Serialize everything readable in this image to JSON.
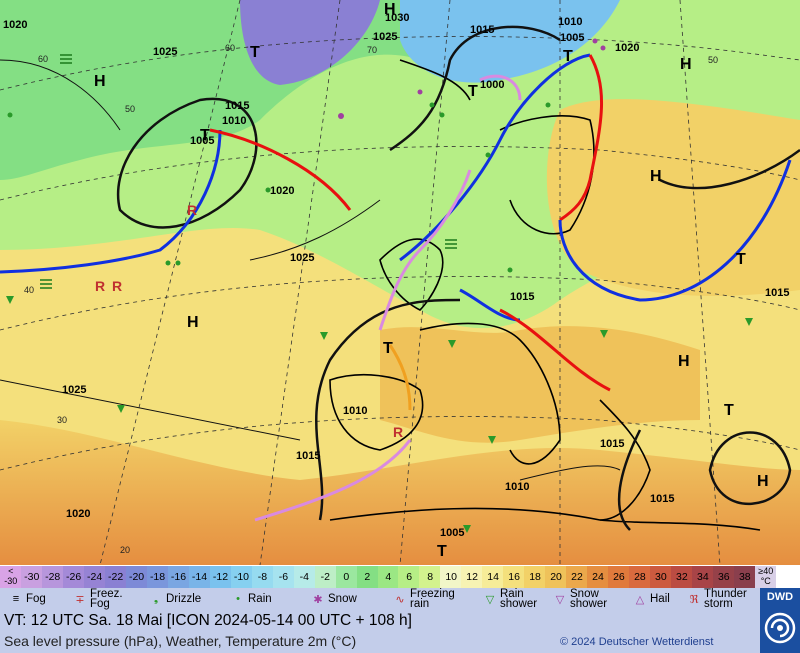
{
  "map": {
    "pressure_labels": [
      "1020",
      "1025",
      "1030",
      "1025",
      "1015",
      "1010",
      "1005",
      "1020",
      "1015",
      "1010",
      "1005",
      "1000",
      "1020",
      "1025",
      "1015",
      "1025",
      "1010",
      "1015",
      "1015",
      "1015",
      "1010",
      "1005",
      "1015",
      "1020"
    ],
    "high_marker": "H",
    "low_marker": "T",
    "lat_labels": [
      "60",
      "50",
      "40",
      "30",
      "20",
      "60",
      "50",
      "70"
    ]
  },
  "scale": {
    "values": [
      "<\n-30",
      "-30",
      "-28",
      "-26",
      "-24",
      "-22",
      "-20",
      "-18",
      "-16",
      "-14",
      "-12",
      "-10",
      "-8",
      "-6",
      "-4",
      "-2",
      "0",
      "2",
      "4",
      "6",
      "8",
      "10",
      "12",
      "14",
      "16",
      "18",
      "20",
      "22",
      "24",
      "26",
      "28",
      "30",
      "32",
      "34",
      "36",
      "38",
      "≥40\n°C"
    ],
    "colors": [
      "#d9a3e6",
      "#c9a0e0",
      "#b796dc",
      "#a48ad8",
      "#9683d4",
      "#8a80d3",
      "#7d8ad7",
      "#7a96dc",
      "#7aa6e2",
      "#79b4e8",
      "#7ac2ee",
      "#86d0f0",
      "#96dbf0",
      "#a6e3ef",
      "#b6ebe8",
      "#bdeec6",
      "#9be79f",
      "#84df84",
      "#9be784",
      "#b6ee86",
      "#d3f28e",
      "#f2f6c8",
      "#f7f3b3",
      "#f6ec98",
      "#f4e07c",
      "#f2d167",
      "#efc25a",
      "#eba84b",
      "#e58e40",
      "#e07a3c",
      "#d96a3e",
      "#cc5a3f",
      "#bb4c42",
      "#a84447",
      "#964149",
      "#8a3f4d",
      "#d8cfe7"
    ]
  },
  "legend": {
    "items": [
      {
        "icon": "fog-icon",
        "label": "Fog"
      },
      {
        "icon": "freezing-fog-icon",
        "label": "Freez.\nFog"
      },
      {
        "icon": "drizzle-icon",
        "label": "Drizzle"
      },
      {
        "icon": "rain-icon",
        "label": "Rain"
      },
      {
        "icon": "snow-icon",
        "label": "Snow"
      },
      {
        "icon": "freezing-rain-icon",
        "label": "Freezing\nrain"
      },
      {
        "icon": "rain-shower-icon",
        "label": "Rain\nshower"
      },
      {
        "icon": "snow-shower-icon",
        "label": "Snow\nshower"
      },
      {
        "icon": "hail-icon",
        "label": "Hail"
      },
      {
        "icon": "thunderstorm-icon",
        "label": "Thunder\nstorm"
      }
    ]
  },
  "footer": {
    "valid_time": "VT: 12 UTC Sa.  18 Mai [ICON 2024-05-14  00 UTC + 108 h]",
    "subtitle": "Sea level pressure (hPa), Weather, Temperature 2m (°C)",
    "copyright": "© 2024 Deutscher Wetterdienst",
    "logo_text": "DWD"
  },
  "colors": {
    "cold_front": "#1030e0",
    "warm_front": "#e81010",
    "occlusion": "#d98ae0",
    "trough": "#f0a020",
    "footer_bg": "#c3cdea",
    "logo_bg": "#1b4fa0"
  }
}
